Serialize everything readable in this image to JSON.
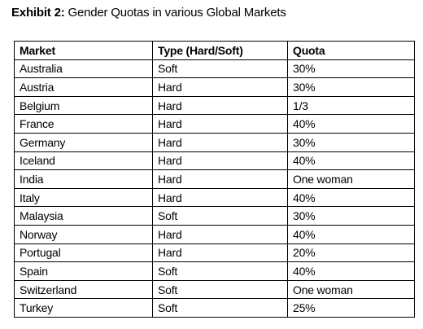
{
  "title": {
    "label": "Exhibit 2:",
    "text": "Gender Quotas in various Global Markets"
  },
  "table": {
    "headers": [
      "Market",
      "Type (Hard/Soft)",
      "Quota"
    ],
    "rows": [
      [
        "Australia",
        "Soft",
        "30%"
      ],
      [
        "Austria",
        "Hard",
        "30%"
      ],
      [
        "Belgium",
        "Hard",
        "1/3"
      ],
      [
        "France",
        "Hard",
        "40%"
      ],
      [
        "Germany",
        "Hard",
        "30%"
      ],
      [
        "Iceland",
        "Hard",
        "40%"
      ],
      [
        "India",
        "Hard",
        "One woman"
      ],
      [
        "Italy",
        "Hard",
        "40%"
      ],
      [
        "Malaysia",
        "Soft",
        "30%"
      ],
      [
        "Norway",
        "Hard",
        "40%"
      ],
      [
        "Portugal",
        "Hard",
        "20%"
      ],
      [
        "Spain",
        "Soft",
        "40%"
      ],
      [
        "Switzerland",
        "Soft",
        "One woman"
      ],
      [
        "Turkey",
        "Soft",
        "25%"
      ]
    ]
  }
}
